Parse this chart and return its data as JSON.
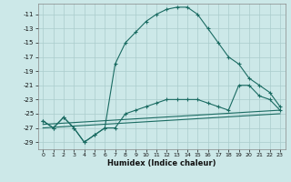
{
  "xlabel": "Humidex (Indice chaleur)",
  "bg_color": "#cce8e8",
  "grid_color": "#aacccc",
  "line_color": "#1a6b62",
  "xlim": [
    -0.5,
    23.5
  ],
  "ylim": [
    -30,
    -9.5
  ],
  "yticks": [
    -29,
    -27,
    -25,
    -23,
    -21,
    -19,
    -17,
    -15,
    -13,
    -11
  ],
  "xticks": [
    0,
    1,
    2,
    3,
    4,
    5,
    6,
    7,
    8,
    9,
    10,
    11,
    12,
    13,
    14,
    15,
    16,
    17,
    18,
    19,
    20,
    21,
    22,
    23
  ],
  "curve1_x": [
    0,
    1,
    2,
    3,
    4,
    5,
    6,
    7,
    8,
    9,
    10,
    11,
    12,
    13,
    14,
    15,
    16,
    17,
    18,
    19,
    20,
    21,
    22,
    23
  ],
  "curve1_y": [
    -26,
    -27,
    -25.5,
    -27,
    -29,
    -28,
    -27,
    -18,
    -15,
    -13.5,
    -12,
    -11,
    -10.3,
    -10,
    -10,
    -11,
    -13,
    -15,
    -17,
    -18,
    -20,
    -21,
    -22,
    -24
  ],
  "curve2_x": [
    0,
    1,
    2,
    3,
    4,
    5,
    6,
    7,
    8,
    9,
    10,
    11,
    12,
    13,
    14,
    15,
    16,
    17,
    18,
    19,
    20,
    21,
    22,
    23
  ],
  "curve2_y": [
    -26,
    -27,
    -25.5,
    -27,
    -29,
    -28,
    -27,
    -27,
    -25,
    -24.5,
    -24,
    -23.5,
    -23,
    -23,
    -23,
    -23,
    -23.5,
    -24,
    -24.5,
    -21,
    -21,
    -22.5,
    -23,
    -24.5
  ],
  "line1_x": [
    0,
    23
  ],
  "line1_y": [
    -26.5,
    -24.5
  ],
  "line2_x": [
    0,
    23
  ],
  "line2_y": [
    -27,
    -25
  ]
}
